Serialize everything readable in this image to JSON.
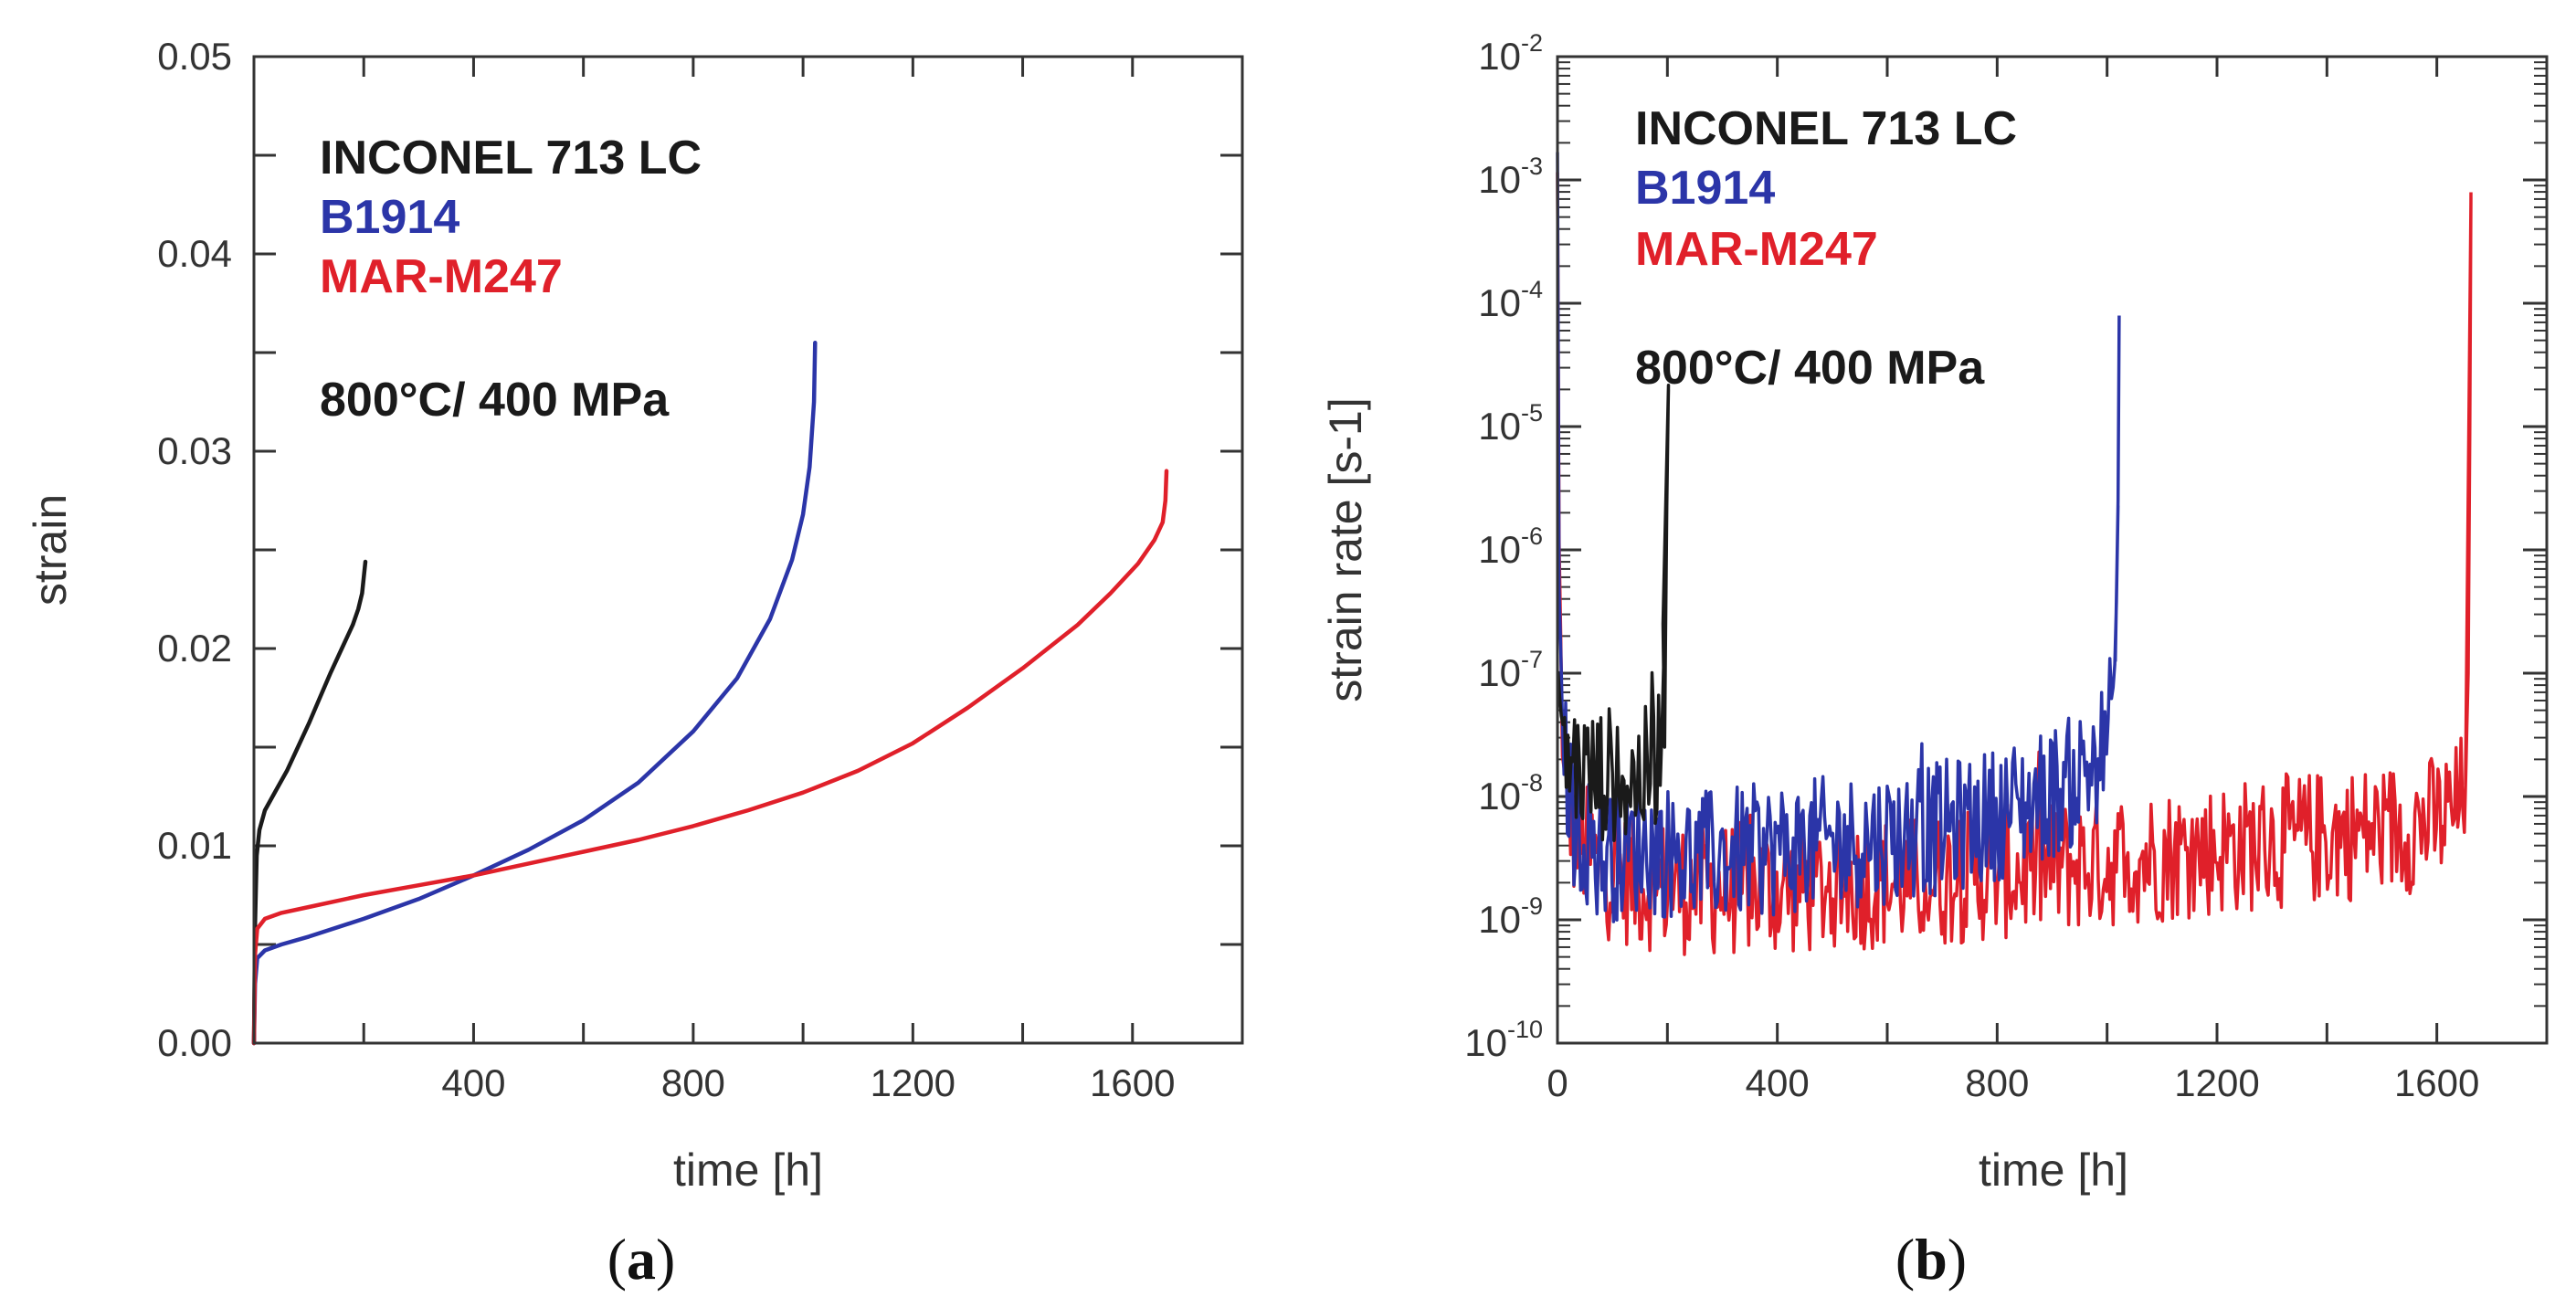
{
  "chart_data": [
    {
      "panel": "(a)",
      "type": "line",
      "title": "",
      "xlabel": "time [h]",
      "ylabel": "strain",
      "xlim": [
        0,
        1800
      ],
      "ylim": [
        0,
        0.05
      ],
      "x_ticks": [
        400,
        800,
        1200,
        1600
      ],
      "y_ticks": [
        0.0,
        0.01,
        0.02,
        0.03,
        0.04,
        0.05
      ],
      "y_tick_labels": [
        "0.00",
        "0.01",
        "0.02",
        "0.03",
        "0.04",
        "0.05"
      ],
      "legend": [
        "INCONEL 713 LC",
        "B1914",
        "MAR-M247"
      ],
      "annotation": "800°C/ 400 MPa",
      "series": [
        {
          "name": "INCONEL 713 LC",
          "color": "#1a1a1a",
          "x": [
            0,
            2,
            5,
            10,
            20,
            40,
            60,
            80,
            100,
            120,
            140,
            160,
            180,
            190,
            197,
            200,
            203
          ],
          "y": [
            0,
            0.006,
            0.0095,
            0.0108,
            0.0118,
            0.0128,
            0.0138,
            0.015,
            0.0162,
            0.0175,
            0.0188,
            0.02,
            0.0212,
            0.022,
            0.0228,
            0.0236,
            0.0244
          ]
        },
        {
          "name": "B1914",
          "color": "#2b35a8",
          "x": [
            0,
            2,
            6,
            20,
            50,
            100,
            200,
            300,
            400,
            500,
            600,
            700,
            800,
            880,
            940,
            980,
            1000,
            1012,
            1020,
            1022
          ],
          "y": [
            0,
            0.003,
            0.0043,
            0.0047,
            0.005,
            0.0054,
            0.0063,
            0.0073,
            0.0085,
            0.0098,
            0.0113,
            0.0132,
            0.0158,
            0.0185,
            0.0215,
            0.0245,
            0.0268,
            0.0292,
            0.0325,
            0.0355
          ]
        },
        {
          "name": "MAR-M247",
          "color": "#e0202a",
          "x": [
            0,
            2,
            6,
            20,
            50,
            100,
            200,
            300,
            400,
            500,
            600,
            700,
            800,
            900,
            1000,
            1100,
            1200,
            1300,
            1400,
            1500,
            1560,
            1610,
            1640,
            1655,
            1660,
            1662
          ],
          "y": [
            0,
            0.0045,
            0.0058,
            0.0063,
            0.0066,
            0.0069,
            0.0075,
            0.008,
            0.0085,
            0.0091,
            0.0097,
            0.0103,
            0.011,
            0.0118,
            0.0127,
            0.0138,
            0.0152,
            0.017,
            0.019,
            0.0212,
            0.0228,
            0.0243,
            0.0255,
            0.0264,
            0.0275,
            0.029
          ]
        }
      ]
    },
    {
      "panel": "(b)",
      "type": "line",
      "title": "",
      "xlabel": "time [h]",
      "ylabel": "strain rate [s-1]",
      "y_scale": "log",
      "xlim": [
        0,
        1800
      ],
      "ylim_exponent": [
        -10,
        -2
      ],
      "x_ticks": [
        0,
        400,
        800,
        1200,
        1600
      ],
      "y_tick_base": "10",
      "y_tick_exponents": [
        "-10",
        "-9",
        "-8",
        "-7",
        "-6",
        "-5",
        "-4",
        "-3",
        "-2"
      ],
      "legend": [
        "INCONEL 713 LC",
        "B1914",
        "MAR-M247"
      ],
      "annotation": "800°C/ 400 MPa",
      "series": [
        {
          "name": "INCONEL 713 LC",
          "color": "#1a1a1a",
          "x": [
            1,
            5,
            12,
            20,
            35,
            50,
            70,
            90,
            110,
            130,
            150,
            165,
            175,
            182,
            187,
            190,
            192,
            195,
            198,
            200,
            202
          ],
          "log10_y": [
            -7.0,
            -7.3,
            -7.5,
            -7.7,
            -7.75,
            -7.8,
            -7.85,
            -7.8,
            -7.85,
            -7.9,
            -7.85,
            -7.8,
            -7.8,
            -7.6,
            -7.5,
            -7.3,
            -6.6,
            -7.6,
            -6.0,
            -5.2,
            -4.7
          ]
        },
        {
          "name": "B1914",
          "color": "#2b35a8",
          "x": [
            0,
            3,
            10,
            30,
            80,
            150,
            250,
            350,
            450,
            550,
            650,
            660,
            665,
            700,
            760,
            820,
            880,
            930,
            970,
            995,
            1008,
            1015,
            1020,
            1022
          ],
          "log10_y": [
            -2.8,
            -6.5,
            -7.6,
            -8.2,
            -8.5,
            -8.4,
            -8.5,
            -8.45,
            -8.4,
            -8.35,
            -8.3,
            -7.5,
            -8.3,
            -8.25,
            -8.2,
            -8.1,
            -8.0,
            -7.9,
            -7.75,
            -7.6,
            -7.35,
            -6.9,
            -5.6,
            -4.1
          ]
        },
        {
          "name": "MAR-M247",
          "color": "#e0202a",
          "x": [
            0,
            3,
            10,
            30,
            80,
            150,
            250,
            350,
            450,
            550,
            650,
            750,
            850,
            950,
            1050,
            1150,
            1250,
            1350,
            1450,
            1540,
            1600,
            1640,
            1652,
            1657,
            1660,
            1662
          ],
          "log10_y": [
            -3.0,
            -6.0,
            -7.8,
            -8.3,
            -8.6,
            -8.7,
            -8.75,
            -8.75,
            -8.75,
            -8.7,
            -8.7,
            -8.65,
            -8.6,
            -8.55,
            -8.5,
            -8.45,
            -8.4,
            -8.35,
            -8.3,
            -8.25,
            -8.2,
            -8.1,
            -7.9,
            -7.0,
            -5.0,
            -3.1
          ]
        }
      ]
    }
  ],
  "panel_labels": {
    "a": {
      "open": "(",
      "letter": "a",
      "close": ")"
    },
    "b": {
      "open": "(",
      "letter": "b",
      "close": ")"
    }
  }
}
